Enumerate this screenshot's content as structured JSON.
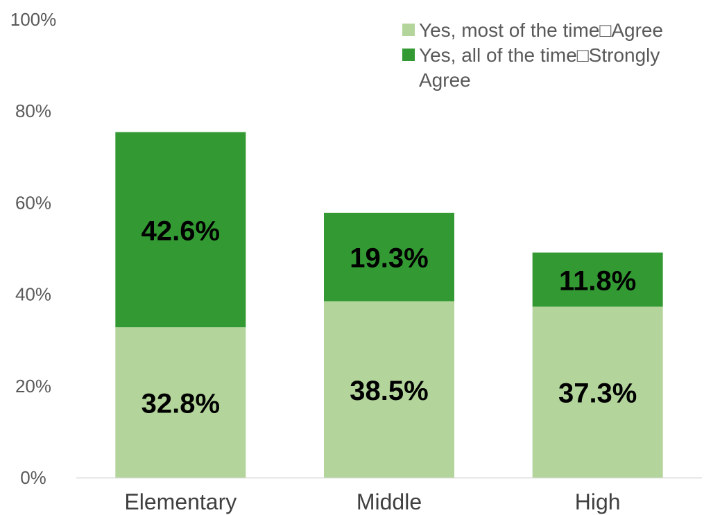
{
  "chart_data": {
    "type": "bar",
    "stacked": true,
    "categories": [
      "Elementary",
      "Middle",
      "High"
    ],
    "series": [
      {
        "name": "Yes, most of the time□Agree",
        "values": [
          32.8,
          38.5,
          37.3
        ],
        "labels": [
          "32.8%",
          "38.5%",
          "37.3%"
        ],
        "color": "#b3d59b"
      },
      {
        "name": "Yes, all of the time□Strongly Agree",
        "name_lines": [
          "Yes, all of the time□Strongly",
          "Agree"
        ],
        "values": [
          42.6,
          19.3,
          11.8
        ],
        "labels": [
          "42.6%",
          "19.3%",
          "11.8%"
        ],
        "color": "#339933"
      }
    ],
    "y_ticks": [
      "0%",
      "20%",
      "40%",
      "60%",
      "80%",
      "100%"
    ],
    "y_tick_values": [
      0,
      20,
      40,
      60,
      80,
      100
    ],
    "ylim": [
      0,
      100
    ],
    "grid": false,
    "legend_position": "top-right"
  }
}
